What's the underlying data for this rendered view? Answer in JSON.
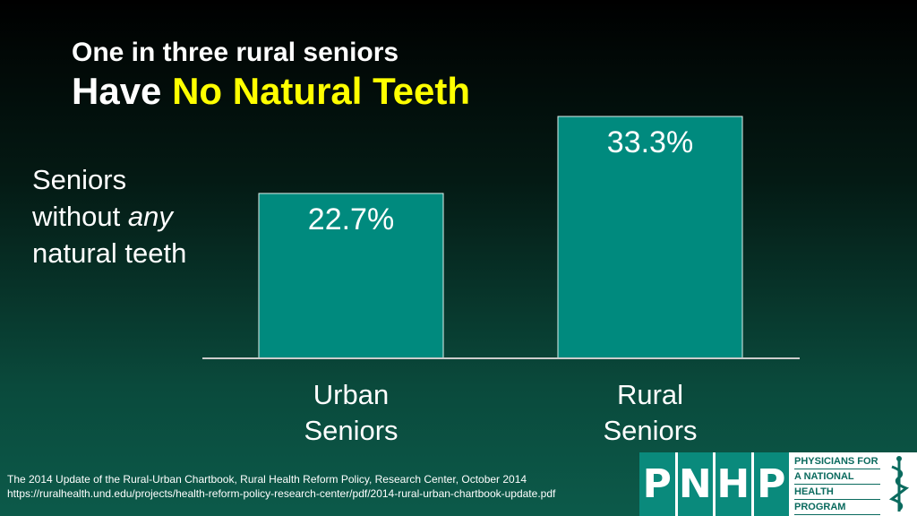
{
  "title": {
    "line1": "One in three rural seniors",
    "line2_prefix": "Have ",
    "line2_accent": "No Natural Teeth"
  },
  "ylabel": {
    "line1": "Seniors",
    "line2_prefix": "without ",
    "line2_emph": "any",
    "line3": "natural teeth"
  },
  "chart_data": {
    "type": "bar",
    "categories": [
      "Urban Seniors",
      "Rural Seniors"
    ],
    "category_lines": [
      [
        "Urban",
        "Seniors"
      ],
      [
        "Rural",
        "Seniors"
      ]
    ],
    "values": [
      22.7,
      33.3
    ],
    "data_labels": [
      "22.7%",
      "33.3%"
    ],
    "ylabel": "Seniors without any natural teeth",
    "ylim": [
      0,
      33.3
    ],
    "grid": false,
    "legend": "none",
    "bar_color": "#008a7e",
    "bar_border": "#e0f0ec",
    "axis_color": "#cccccc"
  },
  "source": {
    "line1": "The 2014 Update of the Rural-Urban Chartbook, Rural Health Reform Policy, Research Center, October 2014",
    "line2": "https://ruralhealth.und.edu/projects/health-reform-policy-research-center/pdf/2014-rural-urban-chartbook-update.pdf"
  },
  "logo": {
    "letters": [
      "P",
      "N",
      "H",
      "P"
    ],
    "words": [
      "PHYSICIANS FOR",
      "A NATIONAL",
      "HEALTH",
      "PROGRAM"
    ],
    "icon": "caduceus-icon",
    "brand_color": "#0a8a7c"
  }
}
